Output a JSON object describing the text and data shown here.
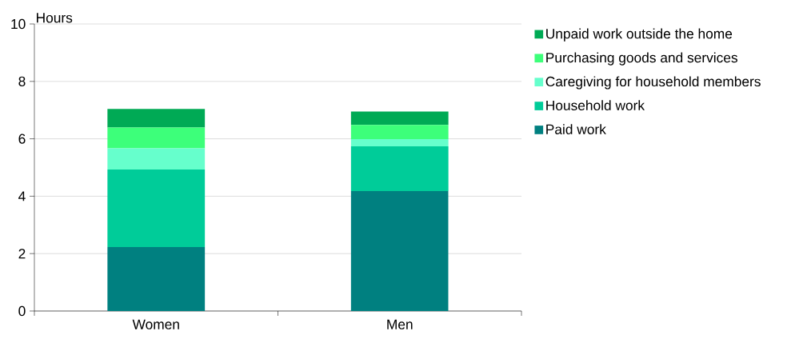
{
  "chart_data": {
    "type": "bar",
    "stacked": true,
    "ylabel": "Hours",
    "categories": [
      "Women",
      "Men"
    ],
    "series": [
      {
        "name": "Paid work",
        "color": "#008080",
        "values": [
          2.23,
          4.18
        ]
      },
      {
        "name": "Household work",
        "color": "#00cc99",
        "values": [
          2.7,
          1.56
        ]
      },
      {
        "name": "Caregiving for household members",
        "color": "#66ffcc",
        "values": [
          0.74,
          0.25
        ]
      },
      {
        "name": "Purchasing goods and services",
        "color": "#3dff7a",
        "values": [
          0.72,
          0.49
        ]
      },
      {
        "name": "Unpaid work outside the home",
        "color": "#00aa55",
        "values": [
          0.65,
          0.47
        ]
      }
    ],
    "ylim": [
      0,
      10
    ],
    "yticks": [
      0,
      2,
      4,
      6,
      8,
      10
    ],
    "grid": "y",
    "legend": "right"
  }
}
